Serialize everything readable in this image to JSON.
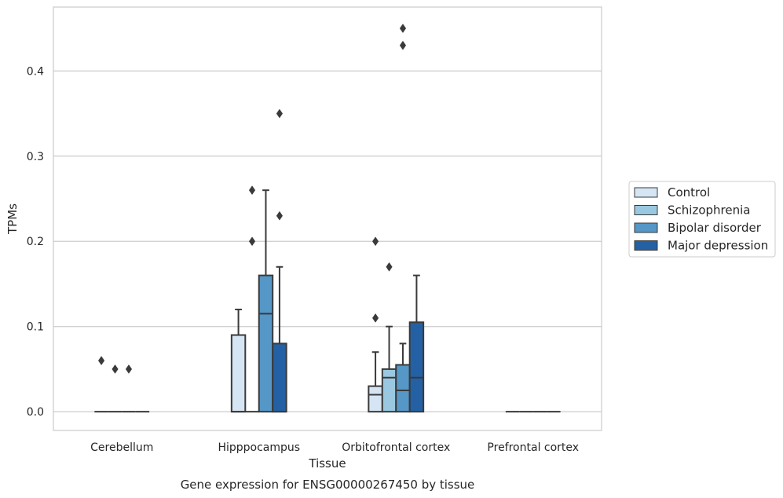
{
  "chart_data": {
    "type": "box",
    "title": "",
    "caption": "Gene expression for ENSG00000267450 by tissue",
    "xlabel": "Tissue",
    "ylabel": "TPMs",
    "ylim": [
      -0.022,
      0.475
    ],
    "yticks": [
      0.0,
      0.1,
      0.2,
      0.3,
      0.4
    ],
    "ytick_labels": [
      "0.0",
      "0.1",
      "0.2",
      "0.3",
      "0.4"
    ],
    "grid": "horizontal",
    "legend_position": "right",
    "categories": [
      "Cerebellum",
      "Hipppocampus",
      "Orbitofrontal cortex",
      "Prefrontal cortex"
    ],
    "series": [
      {
        "name": "Control",
        "color": "#d6e5f4",
        "boxes": [
          {
            "q1": 0,
            "median": 0,
            "q3": 0,
            "whisker_low": 0,
            "whisker_high": 0,
            "outliers": [
              0.06
            ]
          },
          {
            "q1": 0,
            "median": 0,
            "q3": 0.09,
            "whisker_low": 0,
            "whisker_high": 0.12,
            "outliers": []
          },
          {
            "q1": 0,
            "median": 0.02,
            "q3": 0.03,
            "whisker_low": 0,
            "whisker_high": 0.07,
            "outliers": [
              0.11,
              0.2
            ]
          },
          {
            "q1": 0,
            "median": 0,
            "q3": 0,
            "whisker_low": 0,
            "whisker_high": 0,
            "outliers": []
          }
        ]
      },
      {
        "name": "Schizophrenia",
        "color": "#9ac8e0",
        "boxes": [
          {
            "q1": 0,
            "median": 0,
            "q3": 0,
            "whisker_low": 0,
            "whisker_high": 0,
            "outliers": [
              0.05
            ]
          },
          {
            "q1": 0,
            "median": 0,
            "q3": 0,
            "whisker_low": 0,
            "whisker_high": 0,
            "outliers": [
              0.2,
              0.26
            ]
          },
          {
            "q1": 0,
            "median": 0.04,
            "q3": 0.05,
            "whisker_low": 0,
            "whisker_high": 0.1,
            "outliers": [
              0.17
            ]
          },
          {
            "q1": 0,
            "median": 0,
            "q3": 0,
            "whisker_low": 0,
            "whisker_high": 0,
            "outliers": []
          }
        ]
      },
      {
        "name": "Bipolar disorder",
        "color": "#5597c6",
        "boxes": [
          {
            "q1": 0,
            "median": 0,
            "q3": 0,
            "whisker_low": 0,
            "whisker_high": 0,
            "outliers": [
              0.05
            ]
          },
          {
            "q1": 0,
            "median": 0.115,
            "q3": 0.16,
            "whisker_low": 0,
            "whisker_high": 0.26,
            "outliers": []
          },
          {
            "q1": 0,
            "median": 0.025,
            "q3": 0.055,
            "whisker_low": 0,
            "whisker_high": 0.08,
            "outliers": [
              0.43,
              0.45
            ]
          },
          {
            "q1": 0,
            "median": 0,
            "q3": 0,
            "whisker_low": 0,
            "whisker_high": 0,
            "outliers": []
          }
        ]
      },
      {
        "name": "Major depression",
        "color": "#2361a4",
        "boxes": [
          {
            "q1": 0,
            "median": 0,
            "q3": 0,
            "whisker_low": 0,
            "whisker_high": 0,
            "outliers": []
          },
          {
            "q1": 0,
            "median": 0,
            "q3": 0.08,
            "whisker_low": 0,
            "whisker_high": 0.17,
            "outliers": [
              0.23,
              0.35
            ]
          },
          {
            "q1": 0,
            "median": 0.04,
            "q3": 0.105,
            "whisker_low": 0,
            "whisker_high": 0.16,
            "outliers": []
          },
          {
            "q1": 0,
            "median": 0,
            "q3": 0,
            "whisker_low": 0,
            "whisker_high": 0,
            "outliers": []
          }
        ]
      }
    ]
  }
}
